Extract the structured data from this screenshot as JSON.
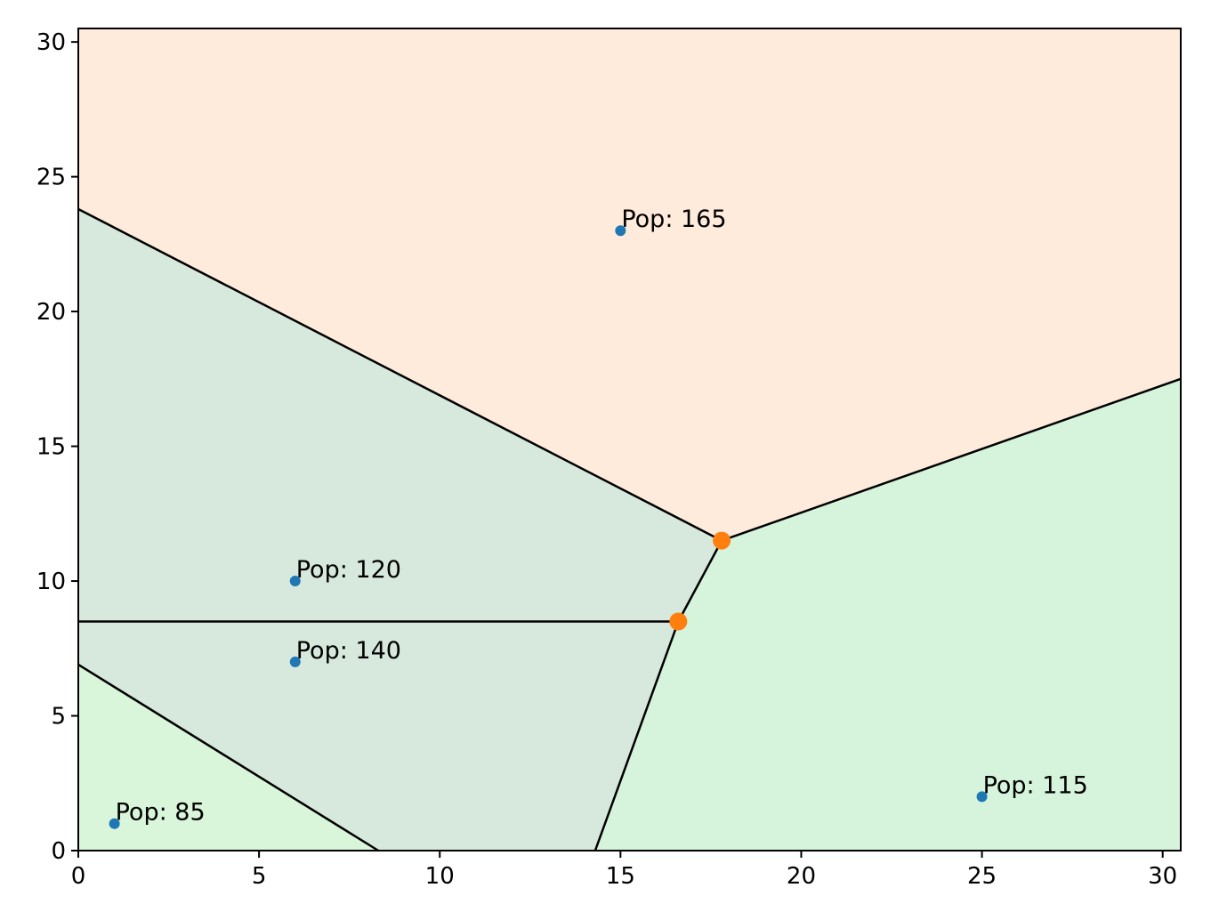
{
  "chart_data": {
    "type": "scatter",
    "title": "",
    "xlabel": "",
    "ylabel": "",
    "xlim": [
      0,
      30.5
    ],
    "ylim": [
      0,
      30.5
    ],
    "xticks": [
      "0",
      "5",
      "10",
      "15",
      "20",
      "25",
      "30"
    ],
    "yticks": [
      "0",
      "5",
      "10",
      "15",
      "20",
      "25",
      "30"
    ],
    "grid": false,
    "points": [
      {
        "x": 1,
        "y": 1,
        "label": "Pop: 85"
      },
      {
        "x": 6,
        "y": 7,
        "label": "Pop: 140"
      },
      {
        "x": 6,
        "y": 10,
        "label": "Pop: 120"
      },
      {
        "x": 15,
        "y": 23,
        "label": "Pop: 165"
      },
      {
        "x": 25,
        "y": 2,
        "label": "Pop: 115"
      }
    ],
    "voronoi_vertices": [
      {
        "x": 17.8,
        "y": 11.5
      },
      {
        "x": 16.6,
        "y": 8.5
      }
    ],
    "regions": [
      {
        "color": "#ffebdb",
        "polygon": [
          [
            0,
            23.8
          ],
          [
            17.8,
            11.5
          ],
          [
            30.5,
            17.5
          ],
          [
            30.5,
            30.5
          ],
          [
            0,
            30.5
          ]
        ]
      },
      {
        "color": "#d7e9dd",
        "polygon": [
          [
            0,
            6.9
          ],
          [
            8.3,
            0
          ],
          [
            14.3,
            0
          ],
          [
            16.6,
            8.5
          ],
          [
            17.8,
            11.5
          ],
          [
            0,
            23.8
          ]
        ]
      },
      {
        "color": "#d6f4dc",
        "polygon": [
          [
            14.3,
            0
          ],
          [
            30.5,
            0
          ],
          [
            30.5,
            17.5
          ],
          [
            17.8,
            11.5
          ],
          [
            16.6,
            8.5
          ]
        ]
      },
      {
        "color": "#d9f5da",
        "polygon": [
          [
            0,
            0
          ],
          [
            8.3,
            0
          ],
          [
            0,
            6.9
          ]
        ]
      }
    ],
    "edges": [
      [
        [
          0,
          23.8
        ],
        [
          17.8,
          11.5
        ]
      ],
      [
        [
          17.8,
          11.5
        ],
        [
          30.5,
          17.5
        ]
      ],
      [
        [
          17.8,
          11.5
        ],
        [
          16.6,
          8.5
        ]
      ],
      [
        [
          16.6,
          8.5
        ],
        [
          14.3,
          0
        ]
      ],
      [
        [
          0,
          8.5
        ],
        [
          16.6,
          8.5
        ]
      ],
      [
        [
          0,
          6.9
        ],
        [
          8.3,
          0
        ]
      ]
    ],
    "colors": {
      "points": "#1f77b4",
      "vertices": "#ff7f0e",
      "edges": "#000000"
    }
  }
}
